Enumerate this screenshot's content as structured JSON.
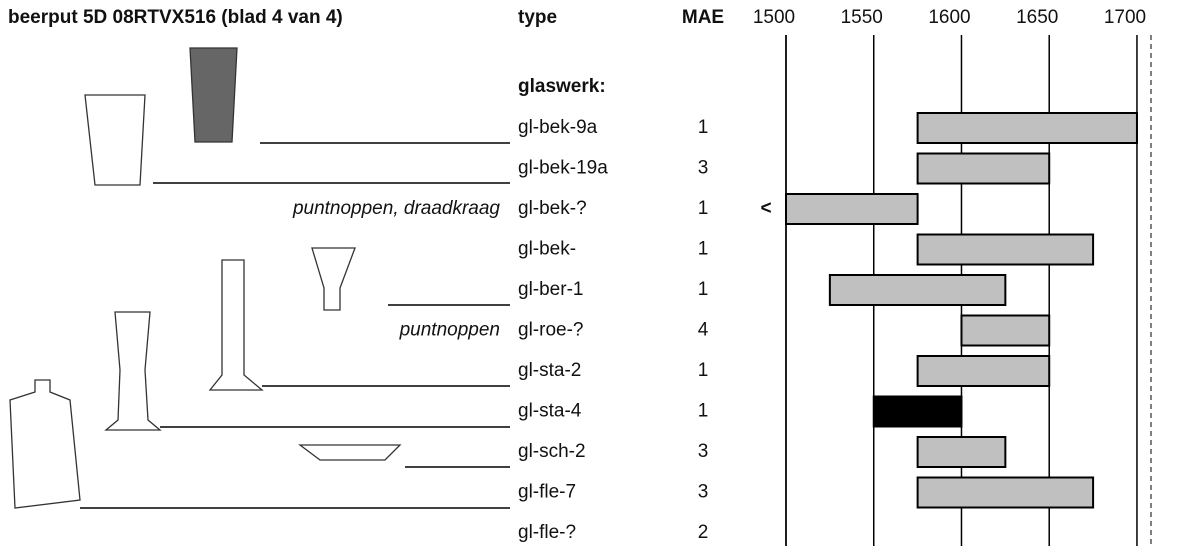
{
  "chart_data": {
    "type": "range",
    "title": "beerput 5D 08RTVX516 (blad 4 van 4)",
    "type_header": "type",
    "mae_header": "MAE",
    "group_label": "glaswerk:",
    "categories": [
      "gl-bek-9a",
      "gl-bek-19a",
      "gl-bek-?",
      "gl-bek-",
      "gl-ber-1",
      "gl-roe-?",
      "gl-sta-2",
      "gl-sta-4",
      "gl-sch-2",
      "gl-fle-7",
      "gl-fle-?"
    ],
    "mae": [
      1,
      3,
      1,
      1,
      1,
      4,
      1,
      1,
      3,
      3,
      2
    ],
    "notes": [
      null,
      null,
      "puntnoppen, draadkraag",
      null,
      null,
      "puntnoppen",
      null,
      null,
      null,
      null,
      null
    ],
    "start_labels": [
      null,
      null,
      "<",
      null,
      null,
      null,
      null,
      null,
      null,
      null,
      null
    ],
    "start": [
      1575,
      1575,
      1500,
      1575,
      1525,
      1600,
      1575,
      1550,
      1575,
      1575,
      null
    ],
    "end": [
      1700,
      1650,
      1575,
      1675,
      1625,
      1650,
      1650,
      1600,
      1625,
      1675,
      null
    ],
    "colors": [
      "#c0c0c0",
      "#c0c0c0",
      "#c0c0c0",
      "#c0c0c0",
      "#c0c0c0",
      "#c0c0c0",
      "#c0c0c0",
      "#000000",
      "#c0c0c0",
      "#c0c0c0",
      null
    ],
    "xlim": [
      1500,
      1708
    ],
    "xticks": [
      1500,
      1550,
      1600,
      1650,
      1700
    ],
    "grid": true
  }
}
